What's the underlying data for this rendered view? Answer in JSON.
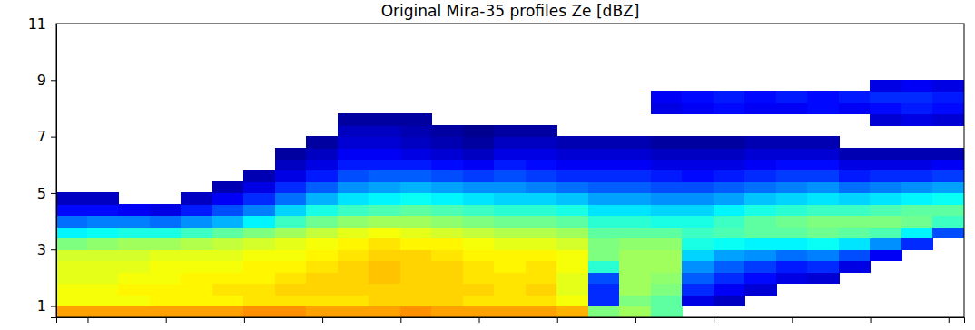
{
  "chart_data": {
    "type": "heatmap",
    "title": "Original Mira-35 profiles Ze [dBZ]",
    "color": "jet",
    "tick_labels": "y",
    "xlim": [
      -0.4,
      11.2
    ],
    "ylim": [
      0.6,
      11
    ],
    "xticks": [
      0,
      1,
      2,
      3,
      4,
      5,
      6,
      7,
      8,
      9,
      10,
      11
    ],
    "yticks": [
      1,
      3,
      5,
      7,
      9,
      11
    ],
    "zlim": [
      -40,
      20
    ],
    "x": [
      -0.2,
      0.2,
      0.6,
      1.0,
      1.4,
      1.8,
      2.2,
      2.6,
      3.0,
      3.4,
      3.8,
      4.2,
      4.6,
      5.0,
      5.4,
      5.8,
      6.2,
      6.6,
      7.0,
      7.4,
      7.8,
      8.2,
      8.6,
      9.0,
      9.4,
      9.8,
      10.2,
      10.6,
      11.0
    ],
    "y": [
      0.8,
      1.2,
      1.6,
      2.0,
      2.4,
      2.8,
      3.2,
      3.6,
      4.0,
      4.4,
      4.8,
      5.2,
      5.6,
      6.0,
      6.4,
      6.8,
      7.2,
      7.6,
      8.0,
      8.4,
      8.8
    ],
    "profiles": [
      [
        3,
        -3,
        -3,
        -4,
        -4,
        -5,
        -10,
        -18,
        -26,
        -32,
        -36,
        null,
        null,
        null,
        null,
        null,
        null,
        null,
        null,
        null,
        null
      ],
      [
        3,
        -3,
        -3,
        -4,
        -4,
        -5,
        -9,
        -17,
        -25,
        -32,
        -36,
        null,
        null,
        null,
        null,
        null,
        null,
        null,
        null,
        null,
        null
      ],
      [
        3,
        -3,
        -2,
        -3,
        -4,
        -5,
        -8,
        -16,
        -25,
        -33,
        null,
        null,
        null,
        null,
        null,
        null,
        null,
        null,
        null,
        null,
        null
      ],
      [
        3,
        -2,
        -2,
        -3,
        -3,
        -4,
        -8,
        -16,
        -26,
        -34,
        null,
        null,
        null,
        null,
        null,
        null,
        null,
        null,
        null,
        null,
        null
      ],
      [
        3,
        -2,
        -2,
        -2,
        -3,
        -4,
        -7,
        -14,
        -24,
        -31,
        -36,
        null,
        null,
        null,
        null,
        null,
        null,
        null,
        null,
        null,
        null
      ],
      [
        3,
        -2,
        -1,
        -2,
        -3,
        -4,
        -6,
        -12,
        -22,
        -28,
        -33,
        -37,
        null,
        null,
        null,
        null,
        null,
        null,
        null,
        null,
        null
      ],
      [
        4,
        -1,
        -1,
        -2,
        -2,
        -3,
        -5,
        -10,
        -18,
        -25,
        -30,
        -34,
        -37,
        null,
        null,
        null,
        null,
        null,
        null,
        null,
        null
      ],
      [
        4,
        -1,
        0,
        -1,
        -2,
        -3,
        -4,
        -8,
        -14,
        -20,
        -26,
        -30,
        -34,
        -36,
        -38,
        null,
        null,
        null,
        null,
        null,
        null
      ],
      [
        3,
        -1,
        0,
        0,
        -1,
        -2,
        -3,
        -6,
        -11,
        -16,
        -22,
        -27,
        -31,
        -34,
        -36,
        -38,
        null,
        null,
        null,
        null,
        null
      ],
      [
        3,
        -1,
        0,
        0,
        0,
        -1,
        -2,
        -4,
        -9,
        -14,
        -19,
        -24,
        -28,
        -31,
        -33,
        -35,
        -36,
        -38,
        null,
        null,
        null
      ],
      [
        3,
        0,
        0,
        1,
        1,
        0,
        -1,
        -3,
        -8,
        -13,
        -18,
        -23,
        -27,
        -31,
        -33,
        -35,
        -36,
        -38,
        null,
        null,
        null
      ],
      [
        4,
        0,
        0,
        0,
        0,
        0,
        -2,
        -4,
        -8,
        -12,
        -17,
        -22,
        -27,
        -31,
        -34,
        -36,
        -37,
        -38,
        null,
        null,
        null
      ],
      [
        3,
        0,
        0,
        0,
        0,
        -1,
        -2,
        -5,
        -9,
        -13,
        -18,
        -23,
        -28,
        -32,
        -35,
        -37,
        -38,
        null,
        null,
        null,
        null
      ],
      [
        3,
        -1,
        0,
        -1,
        -1,
        -2,
        -3,
        -6,
        -10,
        -14,
        -19,
        -24,
        -29,
        -33,
        -36,
        -38,
        -39,
        null,
        null,
        null,
        null
      ],
      [
        3,
        -1,
        -1,
        -1,
        -2,
        -2,
        -4,
        -7,
        -11,
        -15,
        -20,
        -24,
        -28,
        -31,
        -34,
        -36,
        -38,
        null,
        null,
        null,
        null
      ],
      [
        3,
        -1,
        0,
        -1,
        -1,
        -2,
        -4,
        -7,
        -11,
        -15,
        -20,
        -25,
        -29,
        -32,
        -34,
        -36,
        -38,
        null,
        null,
        null,
        null
      ],
      [
        2,
        -3,
        -4,
        -4,
        -3,
        -3,
        -5,
        -8,
        -12,
        -16,
        -21,
        -26,
        -30,
        -33,
        -35,
        -37,
        null,
        null,
        null,
        null,
        null
      ],
      [
        -10,
        -30,
        -30,
        -28,
        -15,
        -10,
        -10,
        -12,
        -15,
        -19,
        -23,
        -27,
        -30,
        -33,
        -35,
        -37,
        null,
        null,
        null,
        null,
        null
      ],
      [
        -8,
        -10,
        -8,
        -8,
        -8,
        -8,
        -9,
        -12,
        -15,
        -19,
        -23,
        -27,
        -30,
        -33,
        -35,
        -37,
        null,
        null,
        null,
        null,
        null
      ],
      [
        -12,
        -12,
        -10,
        -9,
        -8,
        -8,
        -9,
        -12,
        -16,
        -20,
        -24,
        -28,
        -31,
        -34,
        -36,
        -38,
        null,
        null,
        -34,
        -33,
        null
      ],
      [
        null,
        -34,
        -30,
        -27,
        -24,
        -20,
        -16,
        -14,
        -16,
        -20,
        -24,
        -28,
        -32,
        -34,
        -36,
        -38,
        null,
        null,
        -33,
        -32,
        null
      ],
      [
        null,
        -36,
        -33,
        -30,
        -27,
        -23,
        -17,
        -13,
        -14,
        -18,
        -23,
        -27,
        -31,
        -34,
        -36,
        -38,
        null,
        null,
        -32,
        -31,
        null
      ],
      [
        null,
        null,
        -35,
        -32,
        -29,
        -24,
        -18,
        -12,
        -12,
        -16,
        -21,
        -26,
        -30,
        -33,
        -35,
        -37,
        null,
        null,
        -33,
        -32,
        null
      ],
      [
        null,
        null,
        null,
        -34,
        -31,
        -26,
        -18,
        -12,
        -11,
        -15,
        -20,
        -25,
        -29,
        -32,
        -35,
        -37,
        null,
        null,
        -33,
        -31,
        null
      ],
      [
        null,
        null,
        null,
        -35,
        -30,
        -25,
        -17,
        -11,
        -10,
        -14,
        -19,
        -24,
        -29,
        -32,
        -35,
        -37,
        null,
        null,
        -32,
        -32,
        null
      ],
      [
        null,
        null,
        null,
        null,
        -34,
        -28,
        -19,
        -12,
        -10,
        -14,
        -20,
        -26,
        -31,
        -34,
        -37,
        null,
        null,
        null,
        -33,
        -31,
        null
      ],
      [
        null,
        null,
        null,
        null,
        null,
        -33,
        -24,
        -13,
        -10,
        -13,
        -19,
        -25,
        -30,
        -34,
        -37,
        null,
        null,
        -35,
        -32,
        -30,
        -34
      ],
      [
        null,
        null,
        null,
        null,
        null,
        null,
        -30,
        -18,
        -11,
        -12,
        -18,
        -24,
        -30,
        -34,
        -37,
        null,
        null,
        -34,
        -31,
        -30,
        -33
      ],
      [
        null,
        null,
        null,
        null,
        null,
        null,
        null,
        -28,
        -14,
        -12,
        -17,
        -23,
        -29,
        -33,
        -37,
        null,
        null,
        -35,
        -32,
        -31,
        -34
      ]
    ]
  }
}
